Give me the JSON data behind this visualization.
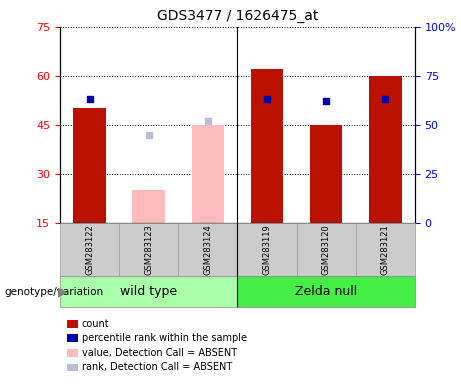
{
  "title": "GDS3477 / 1626475_at",
  "samples": [
    "GSM283122",
    "GSM283123",
    "GSM283124",
    "GSM283119",
    "GSM283120",
    "GSM283121"
  ],
  "count_values": [
    50.0,
    null,
    null,
    62.0,
    45.0,
    60.0
  ],
  "count_absent_values": [
    null,
    25.0,
    45.0,
    null,
    null,
    null
  ],
  "rank_values": [
    63.0,
    null,
    null,
    63.0,
    62.0,
    63.0
  ],
  "rank_absent_values": [
    null,
    45.0,
    52.0,
    null,
    null,
    null
  ],
  "left_ylim": [
    15,
    75
  ],
  "right_ylim": [
    0,
    100
  ],
  "left_yticks": [
    15,
    30,
    45,
    60,
    75
  ],
  "right_yticks": [
    0,
    25,
    50,
    75,
    100
  ],
  "right_yticklabels": [
    "0",
    "25",
    "50",
    "75",
    "100%"
  ],
  "bar_color_present": "#bb1100",
  "bar_color_absent": "#ffbbbb",
  "dot_color_present": "#0000aa",
  "dot_color_absent": "#bbbbdd",
  "group1_label": "wild type",
  "group2_label": "Zelda null",
  "group1_bg": "#aaffaa",
  "group2_bg": "#44ee44",
  "legend_items": [
    {
      "color": "#bb1100",
      "label": "count"
    },
    {
      "color": "#0000aa",
      "label": "percentile rank within the sample"
    },
    {
      "color": "#ffbbbb",
      "label": "value, Detection Call = ABSENT"
    },
    {
      "color": "#bbbbdd",
      "label": "rank, Detection Call = ABSENT"
    }
  ],
  "annotation_label": "genotype/variation",
  "separator_index": 3,
  "sample_box_bg": "#cccccc",
  "bar_width": 0.55
}
